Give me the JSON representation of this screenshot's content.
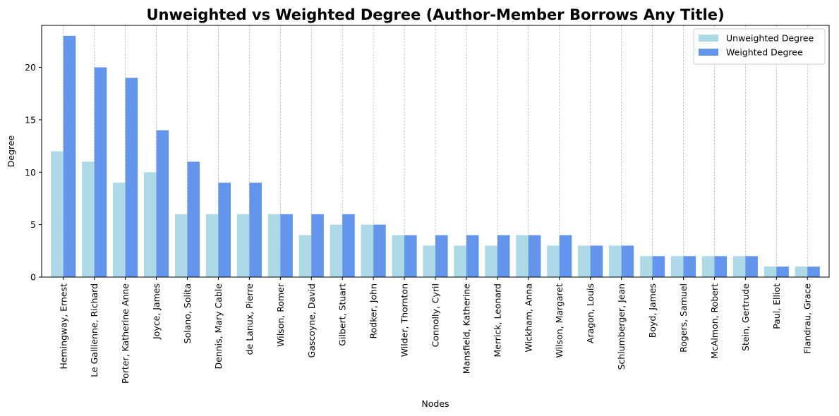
{
  "chart_data": {
    "type": "bar",
    "title": "Unweighted vs Weighted Degree (Author-Member Borrows Any Title)",
    "xlabel": "Nodes",
    "ylabel": "Degree",
    "ylim": [
      0,
      24
    ],
    "yticks": [
      0,
      5,
      10,
      15,
      20
    ],
    "grid": "x-dashed",
    "legend_position": "top-right",
    "categories": [
      "Hemingway, Ernest",
      "Le Gallienne, Richard",
      "Porter, Katherine Anne",
      "Joyce, James",
      "Solano, Solita",
      "Dennis, Mary Cable",
      "de Lanux, Pierre",
      "Wilson, Romer",
      "Gascoyne, David",
      "Gilbert, Stuart",
      "Rodker, John",
      "Wilder, Thornton",
      "Connolly, Cyril",
      "Mansfield, Katherine",
      "Merrick, Leonard",
      "Wickham, Anna",
      "Wilson, Margaret",
      "Aragon, Louis",
      "Schlumberger, Jean",
      "Boyd, James",
      "Rogers, Samuel",
      "McAlmon, Robert",
      "Stein, Gertrude",
      "Paul, Elliot",
      "Flandrau, Grace"
    ],
    "series": [
      {
        "name": "Unweighted Degree",
        "color": "#add8e6",
        "values": [
          12,
          11,
          9,
          10,
          6,
          6,
          6,
          6,
          4,
          5,
          5,
          4,
          3,
          3,
          3,
          4,
          3,
          3,
          3,
          2,
          2,
          2,
          2,
          1,
          1
        ]
      },
      {
        "name": "Weighted Degree",
        "color": "#6495ed",
        "values": [
          23,
          20,
          19,
          14,
          11,
          9,
          9,
          6,
          6,
          6,
          5,
          4,
          4,
          4,
          4,
          4,
          4,
          3,
          3,
          2,
          2,
          2,
          2,
          1,
          1
        ]
      }
    ]
  }
}
